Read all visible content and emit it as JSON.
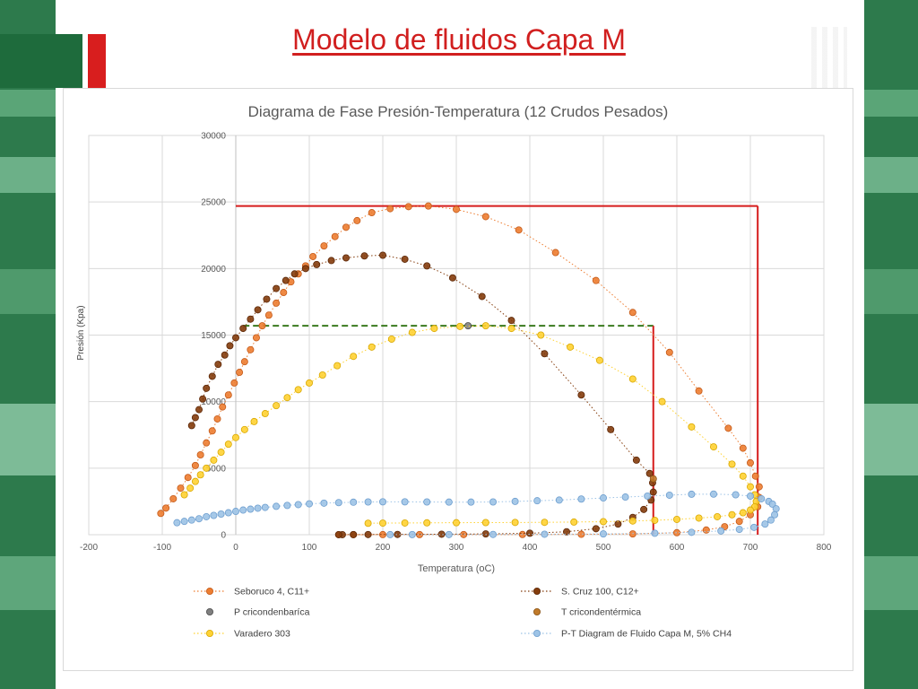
{
  "slide": {
    "title": "Modelo de fluidos Capa M"
  },
  "colors": {
    "seboruco": "#ed7d31",
    "scruz": "#843c0c",
    "pcricon": "#7f7f7f",
    "tcricon": "#c07a2a",
    "varadero": "#ffd233",
    "capam": "#9dc3e6",
    "redline": "#d61c1c",
    "greenline": "#3a7a1e",
    "grid": "#d9d9d9",
    "text": "#595959"
  },
  "chart_data": {
    "type": "scatter",
    "title": "Diagrama de Fase Presión-Temperatura (12 Crudos Pesados)",
    "xlabel": "Temperatura (oC)",
    "ylabel": "Presión (Kpa)",
    "xlim": [
      -200,
      800
    ],
    "ylim": [
      0,
      30000
    ],
    "xticks": [
      "-200",
      "-100",
      "0",
      "100",
      "200",
      "300",
      "400",
      "500",
      "600",
      "700",
      "800"
    ],
    "yticks": [
      "0",
      "5000",
      "10000",
      "15000",
      "20000",
      "25000",
      "30000"
    ],
    "grid": true,
    "legend_position": "bottom",
    "series": [
      {
        "name": "Seboruco 4, C11+",
        "style": "dotted-line-markers",
        "x": [
          -102,
          -95,
          -85,
          -75,
          -65,
          -55,
          -48,
          -40,
          -32,
          -25,
          -18,
          -10,
          -2,
          5,
          12,
          20,
          28,
          36,
          45,
          55,
          65,
          75,
          85,
          95,
          105,
          120,
          135,
          150,
          165,
          185,
          210,
          235,
          262,
          300,
          340,
          385,
          435,
          490,
          540,
          590,
          630,
          670,
          690,
          700,
          707,
          712,
          712,
          710,
          700,
          685,
          665,
          640,
          600,
          540,
          470,
          390,
          310,
          250,
          200,
          160,
          140
        ],
        "y": [
          1600,
          2000,
          2700,
          3500,
          4300,
          5200,
          6000,
          6900,
          7800,
          8700,
          9600,
          10500,
          11400,
          12200,
          13000,
          13900,
          14800,
          15700,
          16500,
          17400,
          18200,
          19000,
          19600,
          20200,
          20900,
          21700,
          22400,
          23100,
          23600,
          24200,
          24500,
          24650,
          24700,
          24450,
          23900,
          22900,
          21200,
          19100,
          16700,
          13700,
          10800,
          8000,
          6500,
          5400,
          4400,
          3600,
          2800,
          2100,
          1500,
          1000,
          600,
          350,
          150,
          60,
          30,
          15,
          10,
          8,
          5,
          3,
          2
        ]
      },
      {
        "name": "S. Cruz 100, C12+",
        "style": "dotted-line-markers",
        "x": [
          -60,
          -55,
          -50,
          -45,
          -40,
          -32,
          -24,
          -15,
          -8,
          0,
          10,
          20,
          30,
          42,
          55,
          68,
          80,
          95,
          110,
          130,
          150,
          175,
          200,
          230,
          260,
          295,
          335,
          375,
          420,
          470,
          510,
          545,
          563,
          567,
          568,
          565,
          555,
          540,
          520,
          490,
          450,
          400,
          340,
          280,
          220,
          180,
          160,
          145,
          140
        ],
        "y": [
          8200,
          8800,
          9400,
          10200,
          11000,
          11900,
          12800,
          13500,
          14200,
          14800,
          15500,
          16200,
          16900,
          17700,
          18500,
          19100,
          19600,
          20000,
          20300,
          20600,
          20800,
          20950,
          21000,
          20700,
          20200,
          19300,
          17900,
          16100,
          13600,
          10500,
          7900,
          5600,
          4600,
          3900,
          3200,
          2600,
          1900,
          1300,
          800,
          450,
          220,
          110,
          60,
          35,
          20,
          12,
          8,
          4,
          2
        ]
      },
      {
        "name": "P cricondenbaríca",
        "style": "marker-only",
        "x": [
          316
        ],
        "y": [
          15700
        ]
      },
      {
        "name": "T cricondentérmica",
        "style": "marker-only",
        "x": [
          568
        ],
        "y": [
          4200
        ]
      },
      {
        "name": "Varadero 303",
        "style": "dotted-line-markers",
        "x": [
          -70,
          -62,
          -55,
          -48,
          -40,
          -30,
          -20,
          -10,
          0,
          12,
          25,
          40,
          55,
          70,
          85,
          100,
          118,
          138,
          160,
          185,
          212,
          240,
          270,
          305,
          340,
          375,
          415,
          455,
          495,
          540,
          580,
          620,
          650,
          675,
          690,
          700,
          706,
          708,
          706,
          700,
          690,
          675,
          655,
          630,
          600,
          570,
          540,
          500,
          460,
          420,
          380,
          340,
          300,
          260,
          230,
          200,
          180
        ],
        "y": [
          3000,
          3500,
          4000,
          4500,
          5000,
          5600,
          6200,
          6800,
          7300,
          7900,
          8500,
          9100,
          9700,
          10300,
          10900,
          11400,
          12000,
          12700,
          13400,
          14100,
          14700,
          15200,
          15500,
          15650,
          15700,
          15500,
          15000,
          14100,
          13100,
          11700,
          10000,
          8100,
          6600,
          5300,
          4400,
          3600,
          3000,
          2500,
          2100,
          1850,
          1650,
          1500,
          1350,
          1250,
          1150,
          1080,
          1030,
          980,
          950,
          930,
          920,
          910,
          900,
          890,
          880,
          870,
          860
        ]
      },
      {
        "name": "P-T Diagram de Fluido Capa M, 5% CH4",
        "style": "dotted-line-markers",
        "x": [
          -80,
          -70,
          -60,
          -50,
          -40,
          -30,
          -20,
          -10,
          0,
          10,
          20,
          30,
          40,
          55,
          70,
          85,
          100,
          120,
          140,
          160,
          180,
          200,
          230,
          260,
          290,
          320,
          350,
          380,
          410,
          440,
          470,
          500,
          530,
          560,
          590,
          620,
          650,
          680,
          700,
          715,
          725,
          730,
          735,
          733,
          728,
          720,
          705,
          685,
          660,
          620,
          570,
          500,
          420,
          350,
          290,
          240,
          210
        ],
        "y": [
          900,
          1000,
          1100,
          1200,
          1350,
          1450,
          1550,
          1650,
          1750,
          1850,
          1920,
          1990,
          2050,
          2130,
          2200,
          2260,
          2320,
          2370,
          2410,
          2440,
          2460,
          2470,
          2470,
          2460,
          2450,
          2450,
          2460,
          2500,
          2550,
          2600,
          2680,
          2760,
          2830,
          2900,
          2970,
          3040,
          3050,
          3000,
          2900,
          2700,
          2500,
          2300,
          1950,
          1500,
          1100,
          800,
          550,
          400,
          280,
          180,
          110,
          60,
          35,
          20,
          12,
          8,
          5
        ]
      }
    ],
    "annotations": [
      {
        "type": "hline",
        "color": "redline",
        "style": "solid",
        "y": 24700,
        "x": [
          0,
          710
        ]
      },
      {
        "type": "vline",
        "color": "redline",
        "style": "solid",
        "x": 710,
        "y": [
          0,
          24700
        ]
      },
      {
        "type": "hline",
        "color": "greenline",
        "style": "dashed",
        "y": 15700,
        "x": [
          10,
          568
        ]
      },
      {
        "type": "vline",
        "color": "redline",
        "style": "solid",
        "x": 568,
        "y": [
          0,
          15700
        ]
      }
    ]
  }
}
